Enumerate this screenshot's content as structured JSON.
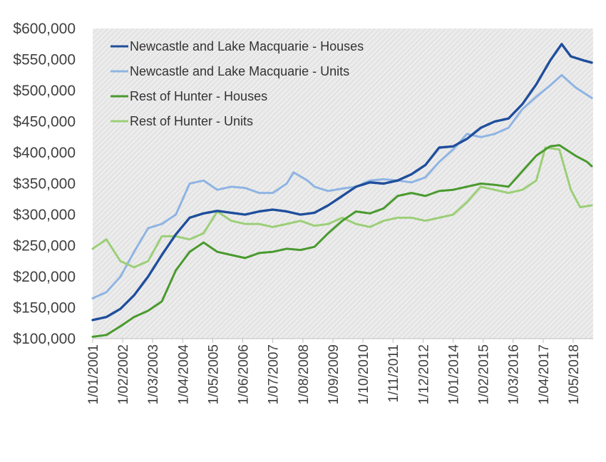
{
  "chart_data": {
    "type": "line",
    "title": "",
    "xlabel": "",
    "ylabel": "",
    "ylim": [
      100000,
      600000
    ],
    "y_ticks": [
      "$100,000",
      "$150,000",
      "$200,000",
      "$250,000",
      "$300,000",
      "$350,000",
      "$400,000",
      "$450,000",
      "$500,000",
      "$550,000",
      "$600,000"
    ],
    "x_ticks": [
      "1/01/2001",
      "1/02/2002",
      "1/03/2003",
      "1/04/2004",
      "1/05/2005",
      "1/06/2006",
      "1/07/2007",
      "1/08/2008",
      "1/09/2009",
      "1/10/2010",
      "1/11/2011",
      "1/12/2012",
      "1/01/2014",
      "1/02/2015",
      "1/03/2016",
      "1/04/2017",
      "1/05/2018"
    ],
    "grid": false,
    "legend_position": "top-left",
    "plot_background": "#e6e6e6",
    "series": [
      {
        "name": "Newcastle and Lake Macquarie - Houses",
        "color": "#1f4e9c",
        "points": [
          [
            "2001-01-01",
            130000
          ],
          [
            "2001-07-01",
            135000
          ],
          [
            "2002-01-01",
            148000
          ],
          [
            "2002-07-01",
            170000
          ],
          [
            "2003-01-01",
            200000
          ],
          [
            "2003-07-01",
            235000
          ],
          [
            "2004-01-01",
            268000
          ],
          [
            "2004-07-01",
            295000
          ],
          [
            "2005-01-01",
            302000
          ],
          [
            "2005-07-01",
            306000
          ],
          [
            "2006-01-01",
            303000
          ],
          [
            "2006-07-01",
            300000
          ],
          [
            "2007-01-01",
            305000
          ],
          [
            "2007-07-01",
            308000
          ],
          [
            "2008-01-01",
            305000
          ],
          [
            "2008-07-01",
            300000
          ],
          [
            "2009-01-01",
            303000
          ],
          [
            "2009-07-01",
            315000
          ],
          [
            "2010-01-01",
            330000
          ],
          [
            "2010-07-01",
            345000
          ],
          [
            "2011-01-01",
            352000
          ],
          [
            "2011-07-01",
            350000
          ],
          [
            "2012-01-01",
            355000
          ],
          [
            "2012-07-01",
            365000
          ],
          [
            "2013-01-01",
            380000
          ],
          [
            "2013-07-01",
            408000
          ],
          [
            "2014-01-01",
            410000
          ],
          [
            "2014-07-01",
            422000
          ],
          [
            "2015-01-01",
            440000
          ],
          [
            "2015-07-01",
            450000
          ],
          [
            "2016-01-01",
            455000
          ],
          [
            "2016-07-01",
            478000
          ],
          [
            "2017-01-01",
            510000
          ],
          [
            "2017-07-01",
            548000
          ],
          [
            "2017-12-01",
            575000
          ],
          [
            "2018-04-01",
            555000
          ],
          [
            "2018-10-01",
            548000
          ],
          [
            "2019-01-01",
            545000
          ]
        ]
      },
      {
        "name": "Newcastle and Lake Macquarie - Units",
        "color": "#8fb4e3",
        "points": [
          [
            "2001-01-01",
            165000
          ],
          [
            "2001-07-01",
            175000
          ],
          [
            "2002-01-01",
            200000
          ],
          [
            "2002-07-01",
            240000
          ],
          [
            "2003-01-01",
            278000
          ],
          [
            "2003-07-01",
            285000
          ],
          [
            "2004-01-01",
            300000
          ],
          [
            "2004-07-01",
            350000
          ],
          [
            "2005-01-01",
            355000
          ],
          [
            "2005-07-01",
            340000
          ],
          [
            "2006-01-01",
            345000
          ],
          [
            "2006-07-01",
            343000
          ],
          [
            "2007-01-01",
            335000
          ],
          [
            "2007-07-01",
            335000
          ],
          [
            "2008-01-01",
            350000
          ],
          [
            "2008-04-01",
            368000
          ],
          [
            "2008-10-01",
            355000
          ],
          [
            "2009-01-01",
            345000
          ],
          [
            "2009-07-01",
            338000
          ],
          [
            "2010-01-01",
            342000
          ],
          [
            "2010-07-01",
            345000
          ],
          [
            "2011-01-01",
            355000
          ],
          [
            "2011-07-01",
            357000
          ],
          [
            "2012-01-01",
            355000
          ],
          [
            "2012-07-01",
            352000
          ],
          [
            "2013-01-01",
            360000
          ],
          [
            "2013-07-01",
            385000
          ],
          [
            "2014-01-01",
            405000
          ],
          [
            "2014-07-01",
            430000
          ],
          [
            "2015-01-01",
            425000
          ],
          [
            "2015-07-01",
            430000
          ],
          [
            "2016-01-01",
            440000
          ],
          [
            "2016-07-01",
            470000
          ],
          [
            "2017-01-01",
            490000
          ],
          [
            "2017-07-01",
            508000
          ],
          [
            "2017-12-01",
            525000
          ],
          [
            "2018-06-01",
            505000
          ],
          [
            "2019-01-01",
            488000
          ]
        ]
      },
      {
        "name": "Rest of Hunter - Houses",
        "color": "#4a9a2e",
        "points": [
          [
            "2001-01-01",
            103000
          ],
          [
            "2001-07-01",
            106000
          ],
          [
            "2002-01-01",
            120000
          ],
          [
            "2002-07-01",
            135000
          ],
          [
            "2003-01-01",
            145000
          ],
          [
            "2003-07-01",
            160000
          ],
          [
            "2004-01-01",
            210000
          ],
          [
            "2004-07-01",
            240000
          ],
          [
            "2005-01-01",
            255000
          ],
          [
            "2005-07-01",
            240000
          ],
          [
            "2006-01-01",
            235000
          ],
          [
            "2006-07-01",
            230000
          ],
          [
            "2007-01-01",
            238000
          ],
          [
            "2007-07-01",
            240000
          ],
          [
            "2008-01-01",
            245000
          ],
          [
            "2008-07-01",
            243000
          ],
          [
            "2009-01-01",
            248000
          ],
          [
            "2009-07-01",
            270000
          ],
          [
            "2010-01-01",
            290000
          ],
          [
            "2010-07-01",
            305000
          ],
          [
            "2011-01-01",
            302000
          ],
          [
            "2011-07-01",
            310000
          ],
          [
            "2012-01-01",
            330000
          ],
          [
            "2012-07-01",
            335000
          ],
          [
            "2013-01-01",
            330000
          ],
          [
            "2013-07-01",
            338000
          ],
          [
            "2014-01-01",
            340000
          ],
          [
            "2014-07-01",
            345000
          ],
          [
            "2015-01-01",
            350000
          ],
          [
            "2015-07-01",
            348000
          ],
          [
            "2016-01-01",
            345000
          ],
          [
            "2016-07-01",
            370000
          ],
          [
            "2017-01-01",
            395000
          ],
          [
            "2017-07-01",
            410000
          ],
          [
            "2017-11-01",
            412000
          ],
          [
            "2018-06-01",
            395000
          ],
          [
            "2018-11-01",
            385000
          ],
          [
            "2019-01-01",
            378000
          ]
        ]
      },
      {
        "name": "Rest of Hunter - Units",
        "color": "#9ccf78",
        "points": [
          [
            "2001-01-01",
            245000
          ],
          [
            "2001-07-01",
            260000
          ],
          [
            "2002-01-01",
            225000
          ],
          [
            "2002-07-01",
            215000
          ],
          [
            "2003-01-01",
            225000
          ],
          [
            "2003-07-01",
            265000
          ],
          [
            "2004-01-01",
            265000
          ],
          [
            "2004-07-01",
            260000
          ],
          [
            "2005-01-01",
            270000
          ],
          [
            "2005-07-01",
            305000
          ],
          [
            "2006-01-01",
            290000
          ],
          [
            "2006-07-01",
            285000
          ],
          [
            "2007-01-01",
            285000
          ],
          [
            "2007-07-01",
            280000
          ],
          [
            "2008-01-01",
            285000
          ],
          [
            "2008-07-01",
            290000
          ],
          [
            "2009-01-01",
            282000
          ],
          [
            "2009-07-01",
            285000
          ],
          [
            "2010-01-01",
            295000
          ],
          [
            "2010-07-01",
            285000
          ],
          [
            "2011-01-01",
            280000
          ],
          [
            "2011-07-01",
            290000
          ],
          [
            "2012-01-01",
            295000
          ],
          [
            "2012-07-01",
            295000
          ],
          [
            "2013-01-01",
            290000
          ],
          [
            "2013-07-01",
            295000
          ],
          [
            "2014-01-01",
            300000
          ],
          [
            "2014-07-01",
            320000
          ],
          [
            "2015-01-01",
            345000
          ],
          [
            "2015-07-01",
            340000
          ],
          [
            "2016-01-01",
            335000
          ],
          [
            "2016-07-01",
            340000
          ],
          [
            "2017-01-01",
            355000
          ],
          [
            "2017-05-01",
            408000
          ],
          [
            "2017-11-01",
            405000
          ],
          [
            "2018-04-01",
            340000
          ],
          [
            "2018-08-01",
            312000
          ],
          [
            "2019-01-01",
            315000
          ]
        ]
      }
    ]
  }
}
